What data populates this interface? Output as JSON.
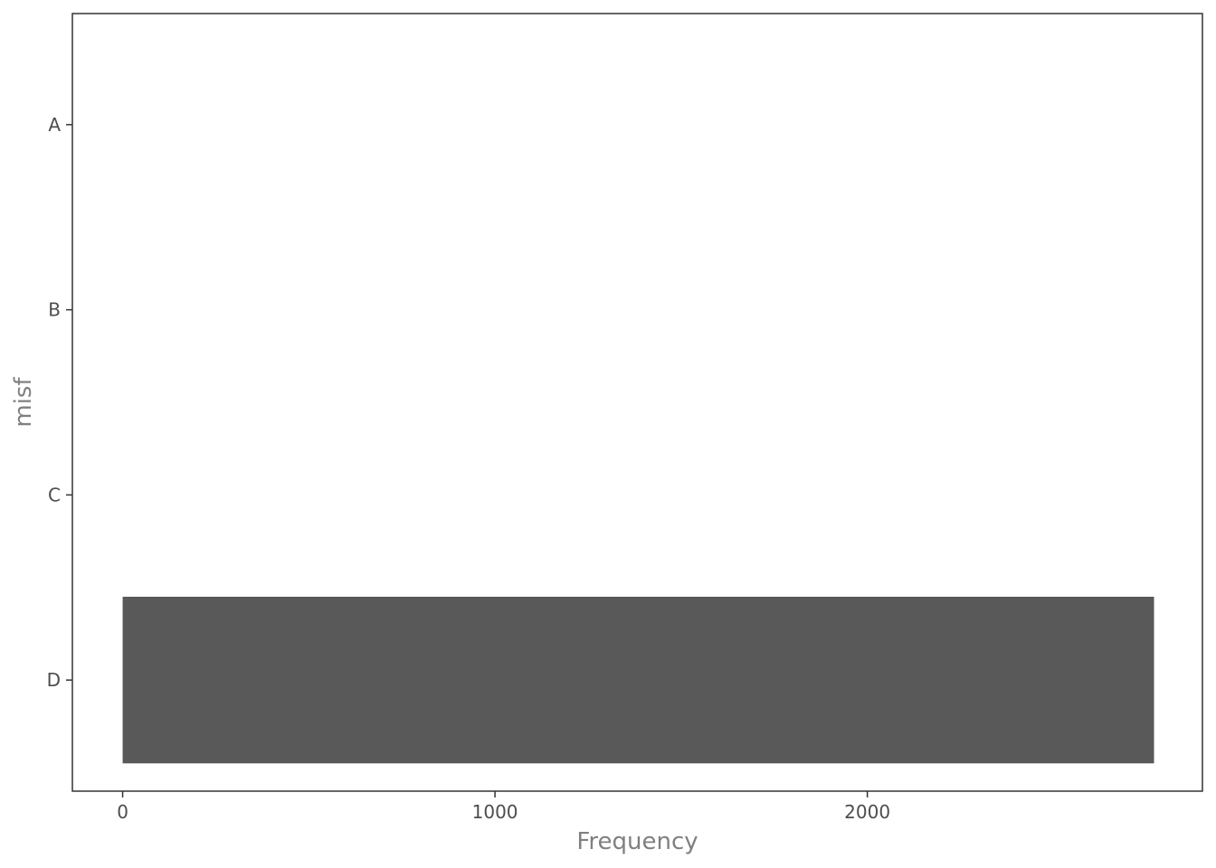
{
  "chart_data": {
    "type": "bar",
    "orientation": "horizontal",
    "title": "",
    "xlabel": "Frequency",
    "ylabel": "misf",
    "categories": [
      "A",
      "B",
      "C",
      "D"
    ],
    "values": [
      0,
      0,
      0,
      2770
    ],
    "xlim": [
      -135,
      2900
    ],
    "xticks": [
      0,
      1000,
      2000
    ],
    "xtick_labels": [
      "0",
      "1000",
      "2000"
    ],
    "grid": false,
    "legend": "none",
    "colors": {
      "bar": "#595959",
      "panel_border": "#333333",
      "tick": "#333333"
    }
  }
}
